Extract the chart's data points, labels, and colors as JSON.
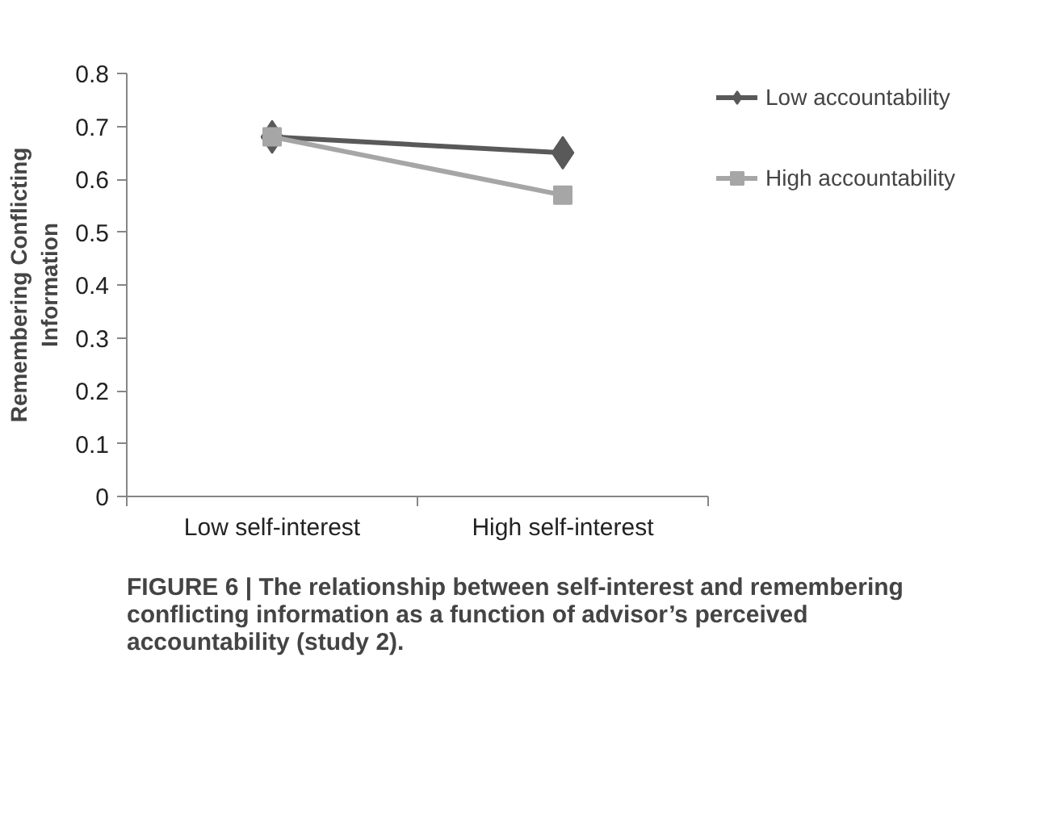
{
  "chart_data": {
    "type": "line",
    "ylabel": "Remembering Conflicting Information",
    "categories": [
      "Low self-interest",
      "High self-interest"
    ],
    "series": [
      {
        "name": "Low accountability",
        "color": "#595959",
        "values": [
          0.68,
          0.65
        ],
        "marker": "diamond"
      },
      {
        "name": "High accountability",
        "color": "#a6a6a6",
        "values": [
          0.68,
          0.57
        ],
        "marker": "square"
      }
    ],
    "ylim": [
      0,
      0.8
    ],
    "yticks": [
      0,
      0.1,
      0.2,
      0.3,
      0.4,
      0.5,
      0.6,
      0.7,
      0.8
    ],
    "grid": false,
    "legend": "right",
    "annotations": [
      "FIGURE 6 | The relationship between self-interest and remembering conflicting information as a function of advisor’s perceived accountability (study 2)."
    ]
  }
}
